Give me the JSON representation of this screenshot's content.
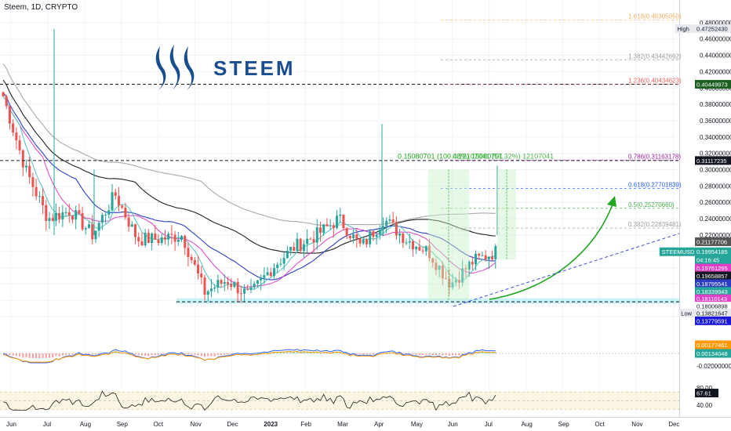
{
  "header": {
    "title": "Steem, 1D, CRYPTO"
  },
  "logo": {
    "text": "STEEM",
    "color": "#1a4d8f"
  },
  "colors": {
    "bull": "#26a69a",
    "bear": "#ef5350",
    "ma_black": "#1f1f1f",
    "ma_gray": "#a9a9a9",
    "ma_blue": "#2c3fc4",
    "ma_pink": "#e040c8",
    "ma_teal": "#4fc3c0",
    "support_band": "#bff0f5",
    "trend_green": "#1fa81f",
    "trend_blue": "#3f4fd8",
    "macd": "#2962ff",
    "signal": "#ff9800",
    "rsi": "#1f1f1f"
  },
  "chart_data": [
    {
      "type": "candlestick",
      "title": "Steem, 1D, CRYPTO",
      "ylim": [
        0.1,
        0.5
      ],
      "y_ticks": [
        "0.48000000",
        "0.46000000",
        "0.44000000",
        "0.42000000",
        "0.40000000",
        "0.38000000",
        "0.36000000",
        "0.34000000",
        "0.32000000",
        "0.30000000",
        "0.28000000",
        "0.26000000",
        "0.24000000",
        "0.22000000",
        "0.20000000",
        "0.18000000",
        "0.16000000",
        "0.14000000",
        "0.12000000"
      ],
      "x_ticks": [
        "Jun",
        "Jul",
        "Aug",
        "Sep",
        "Oct",
        "Nov",
        "Dec",
        "2023",
        "Feb",
        "Mar",
        "Apr",
        "May",
        "Jun",
        "Jul",
        "Aug",
        "Sep",
        "Oct",
        "Nov",
        "Dec"
      ],
      "price_keypoints": [
        0.39,
        0.3,
        0.24,
        0.25,
        0.22,
        0.27,
        0.215,
        0.215,
        0.22,
        0.15,
        0.165,
        0.145,
        0.18,
        0.205,
        0.22,
        0.24,
        0.205,
        0.24,
        0.215,
        0.2,
        0.16,
        0.188,
        0.1995
      ],
      "wick_events": [
        {
          "x": "Jul",
          "high": 0.4725
        },
        {
          "x": "Aug",
          "high": 0.3
        },
        {
          "x": "Apr",
          "high": 0.356
        },
        {
          "x": "Jul",
          "high": 0.305
        }
      ],
      "fibonacci": [
        {
          "label": "1.618(0.48305050)",
          "value": 0.4830505,
          "color": "#f0b060"
        },
        {
          "label": "1.382(0.43442692)",
          "value": 0.43442692,
          "color": "#9e9e9e"
        },
        {
          "label": "1.236(0.40434623)",
          "value": 0.40434623,
          "color": "#f06060"
        },
        {
          "label": "0.786(0.31163178)",
          "value": 0.31163178,
          "color": "#a020a0"
        },
        {
          "label": "0.618(0.27701839)",
          "value": 0.27701839,
          "color": "#2962ff"
        },
        {
          "label": "0.5(0.25270660)",
          "value": 0.2527066,
          "color": "#4caf50"
        },
        {
          "label": "0.382(0.22839481)",
          "value": 0.22839481,
          "color": "#9e9e9e"
        }
      ],
      "horizontal_lines": [
        {
          "name": "resistance-top",
          "value": 0.40449973
        },
        {
          "name": "resistance-mid",
          "value": 0.31117235
        },
        {
          "name": "support-low",
          "value": 0.13821647
        }
      ],
      "support_band": [
        0.136,
        0.1425
      ],
      "measure_label": "0.15080701 (100.48%) 15080701",
      "measure_label_overlap": "0.12107041 (57.32%) 12107041",
      "price_tags": [
        {
          "label": "High",
          "value": "0.47252430",
          "y": 0.4725243,
          "color": "#e8eaf0",
          "text": "#131722"
        },
        {
          "label": "",
          "value": "0.40449973",
          "y": 0.40449973,
          "color": "#1b5e20",
          "text": "#ffffff"
        },
        {
          "label": "",
          "value": "0.31117235",
          "y": 0.31117235,
          "color": "#131722",
          "text": "#ffffff"
        },
        {
          "label": "",
          "value": "0.21177706",
          "y": 0.21177706,
          "color": "#555555",
          "text": "#ffffff"
        },
        {
          "label": "STEEMUSD",
          "value": "0.19954185",
          "y": 0.19954185,
          "color": "#26a69a",
          "text": "#ffffff"
        },
        {
          "label": "",
          "value": "04:16:45",
          "y": 0.1895,
          "color": "#26a69a",
          "text": "#ffffff"
        },
        {
          "label": "",
          "value": "0.19761295",
          "y": 0.1795,
          "color": "#e040c8",
          "text": "#ffffff"
        },
        {
          "label": "",
          "value": "0.19658857",
          "y": 0.17,
          "color": "#131722",
          "text": "#ffffff"
        },
        {
          "label": "",
          "value": "0.18795541",
          "y": 0.1605,
          "color": "#2c3fc4",
          "text": "#ffffff"
        },
        {
          "label": "",
          "value": "0.18339943",
          "y": 0.151,
          "color": "#26a69a",
          "text": "#ffffff"
        },
        {
          "label": "",
          "value": "0.18110143",
          "y": 0.142,
          "color": "#e040c8",
          "text": "#ffffff"
        },
        {
          "label": "",
          "value": "0.18006898",
          "y": 0.133,
          "color": "#ffffff",
          "text": "#131722"
        },
        {
          "label": "Low",
          "value": "0.13821647",
          "y": 0.1245,
          "color": "#e8eaf0",
          "text": "#131722"
        },
        {
          "label": "",
          "value": "0.13779591",
          "y": 0.115,
          "color": "#1a1ad8",
          "text": "#ffffff"
        }
      ]
    },
    {
      "type": "line",
      "title": "MACD",
      "y_ticks": [
        "-0.02000000"
      ],
      "values_tags": [
        {
          "value": "0.00177461",
          "color": "#ff9800"
        },
        {
          "value": "0.00134048",
          "color": "#26a69a"
        }
      ]
    },
    {
      "type": "line",
      "title": "RSI",
      "y_ticks": [
        "80.00",
        "40.00"
      ],
      "levels": [
        70,
        50,
        30
      ],
      "current": "67.61"
    }
  ]
}
